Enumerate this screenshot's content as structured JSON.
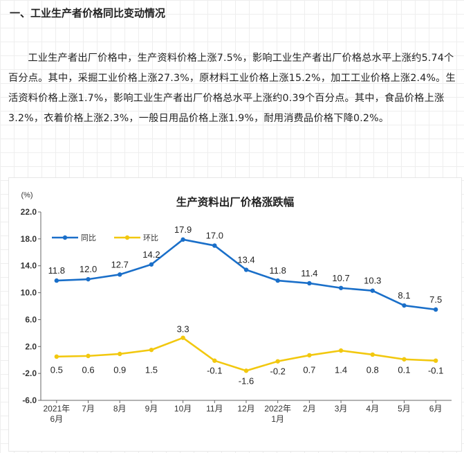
{
  "heading": "一、工业生产者价格同比变动情况",
  "paragraph": "工业生产者出厂价格中，生产资料价格上涨7.5%，影响工业生产者出厂价格总水平上涨约5.74个百分点。其中，采掘工业价格上涨27.3%，原材料工业价格上涨15.2%，加工工业价格上涨2.4%。生活资料价格上涨1.7%，影响工业生产者出厂价格总水平上涨约0.39个百分点。其中，食品价格上涨3.2%，衣着价格上涨2.3%，一般日用品价格上涨1.9%，耐用消费品价格下降0.2%。",
  "chart_data": {
    "type": "line",
    "title": "生产资料出厂价格涨跌幅",
    "unit_label": "(%)",
    "categories": [
      [
        "2021年",
        "6月"
      ],
      [
        "7月"
      ],
      [
        "8月"
      ],
      [
        "9月"
      ],
      [
        "10月"
      ],
      [
        "11月"
      ],
      [
        "12月"
      ],
      [
        "2022年",
        "1月"
      ],
      [
        "2月"
      ],
      [
        "3月"
      ],
      [
        "4月"
      ],
      [
        "5月"
      ],
      [
        "6月"
      ]
    ],
    "yticks": [
      "22.0",
      "18.0",
      "14.0",
      "10.0",
      "6.0",
      "2.0",
      "-2.0",
      "-6.0"
    ],
    "ylim": [
      -6,
      22
    ],
    "legend_position": "top-left",
    "grid": false,
    "series": [
      {
        "name": "同比",
        "color": "#1a6fc9",
        "values": [
          11.8,
          12.0,
          12.7,
          14.2,
          17.9,
          17.0,
          13.4,
          11.8,
          11.4,
          10.7,
          10.3,
          8.1,
          7.5
        ],
        "labels": [
          "11.8",
          "12.0",
          "12.7",
          "14.2",
          "17.9",
          "17.0",
          "13.4",
          "11.8",
          "11.4",
          "10.7",
          "10.3",
          "8.1",
          "7.5"
        ]
      },
      {
        "name": "环比",
        "color": "#f2c80f",
        "values": [
          0.5,
          0.6,
          0.9,
          1.5,
          3.3,
          -0.1,
          -1.6,
          -0.2,
          0.7,
          1.4,
          0.8,
          0.1,
          -0.1
        ],
        "labels": [
          "0.5",
          "0.6",
          "0.9",
          "1.5",
          "3.3",
          "-0.1",
          "-1.6",
          "-0.2",
          "0.7",
          "1.4",
          "0.8",
          "0.1",
          "-0.1"
        ]
      }
    ]
  }
}
